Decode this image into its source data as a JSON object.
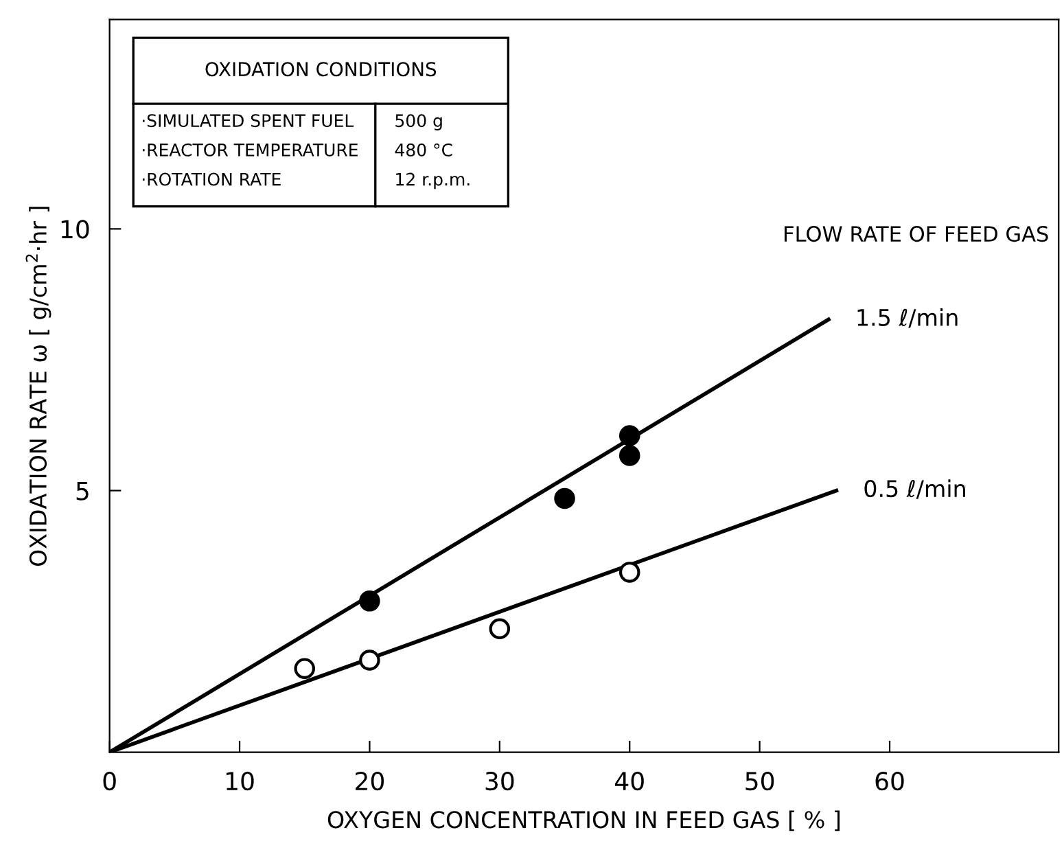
{
  "chart_data": {
    "type": "scatter",
    "xlabel": "OXYGEN CONCENTRATION IN FEED GAS [ % ]",
    "ylabel": "OXIDATION RATE ω [ g/cm$^{2}$·hr ]",
    "xlim": [
      0,
      73
    ],
    "xticks": [
      0,
      10,
      20,
      30,
      40,
      50,
      60
    ],
    "ylim": [
      0,
      14
    ],
    "yticks": [
      5,
      10
    ],
    "marker": "circle",
    "grid": false,
    "legend": false,
    "series": [
      {
        "color": "#000000",
        "x": [
          20,
          35,
          40,
          40
        ],
        "values": [
          2.89,
          4.85,
          6.05,
          5.67
        ]
      },
      {
        "color": "#ffffff",
        "x": [
          15,
          20,
          30,
          40
        ],
        "values": [
          1.6,
          1.76,
          2.36,
          3.44
        ]
      },
      {
        "type": "line",
        "marker": "none",
        "name": "1.5 ℓ/min",
        "color": "#000000",
        "x": [
          0,
          55.3
        ],
        "values": [
          0,
          8.27
        ]
      },
      {
        "type": "line",
        "marker": "none",
        "name": "0.5 ℓ/min",
        "color": "#000000",
        "x": [
          0,
          55.9
        ],
        "values": [
          0,
          5.0
        ]
      }
    ],
    "annotations": [
      "OXIDATION CONDITIONS",
      "·SIMULATED SPENT FUEL",
      "500 g",
      "·REACTOR TEMPERATURE",
      "480 °C",
      "·ROTATION RATE",
      "12 r.p.m.",
      "FLOW RATE OF FEED GAS"
    ]
  }
}
